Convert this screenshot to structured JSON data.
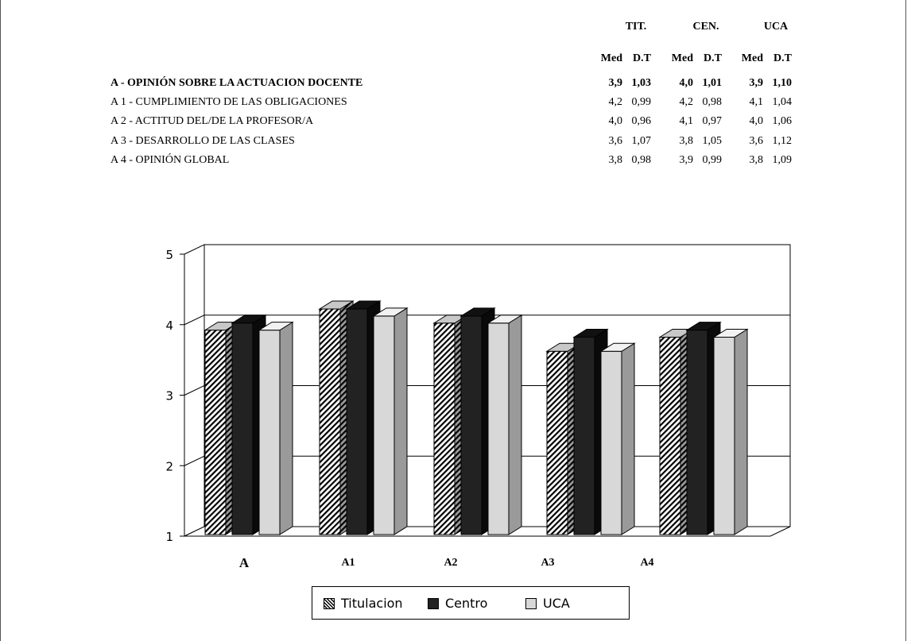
{
  "table": {
    "group_headers": [
      "TIT.",
      "CEN.",
      "UCA"
    ],
    "sub_headers": [
      "Med",
      "D.T",
      "Med",
      "D.T",
      "Med",
      "D.T"
    ],
    "rows": [
      {
        "label": "A - OPINIÓN SOBRE LA ACTUACION DOCENTE",
        "bold": true,
        "values": [
          "3,9",
          "1,03",
          "4,0",
          "1,01",
          "3,9",
          "1,10"
        ]
      },
      {
        "label": "A 1 - CUMPLIMIENTO DE LAS OBLIGACIONES",
        "bold": false,
        "values": [
          "4,2",
          "0,99",
          "4,2",
          "0,98",
          "4,1",
          "1,04"
        ]
      },
      {
        "label": "A 2 - ACTITUD DEL/DE LA PROFESOR/A",
        "bold": false,
        "values": [
          "4,0",
          "0,96",
          "4,1",
          "0,97",
          "4,0",
          "1,06"
        ]
      },
      {
        "label": "A 3 - DESARROLLO DE LAS CLASES",
        "bold": false,
        "values": [
          "3,6",
          "1,07",
          "3,8",
          "1,05",
          "3,6",
          "1,12"
        ]
      },
      {
        "label": "A 4 - OPINIÓN GLOBAL",
        "bold": false,
        "values": [
          "3,8",
          "0,98",
          "3,9",
          "0,99",
          "3,8",
          "1,09"
        ]
      }
    ]
  },
  "chart_data": {
    "type": "bar",
    "categories": [
      "A",
      "A1",
      "A2",
      "A3",
      "A4"
    ],
    "series": [
      {
        "name": "Titulacion",
        "values": [
          3.9,
          4.2,
          4.0,
          3.6,
          3.8
        ]
      },
      {
        "name": "Centro",
        "values": [
          4.0,
          4.2,
          4.1,
          3.8,
          3.9
        ]
      },
      {
        "name": "UCA",
        "values": [
          3.9,
          4.1,
          4.0,
          3.6,
          3.8
        ]
      }
    ],
    "yticks": [
      "1",
      "2",
      "3",
      "4",
      "5"
    ],
    "ylim": [
      1,
      5
    ],
    "grid": true,
    "legend_position": "bottom",
    "colors": {
      "Titulacion": "#ffffff",
      "Centro": "#222222",
      "UCA": "#d8d8d8"
    }
  }
}
